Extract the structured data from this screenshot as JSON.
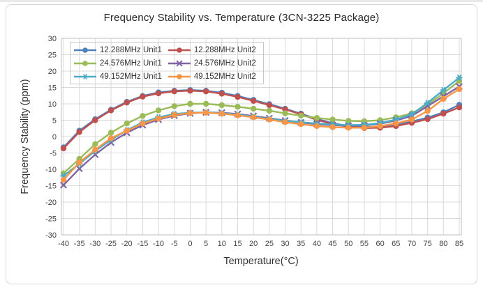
{
  "accent_colors": {
    "grid": "#d9d9d9",
    "plot_border": "#bfbfbf",
    "tick_text": "#404040",
    "title_text": "#262626"
  },
  "chart_data": {
    "type": "line",
    "title": "Frequency Stability vs. Temperature (3CN-3225 Package)",
    "xlabel": "Temperature(°C)",
    "ylabel": "Frequency Stability (ppm)",
    "x": [
      -40,
      -35,
      -30,
      -25,
      -20,
      -15,
      -10,
      -5,
      0,
      5,
      10,
      15,
      20,
      25,
      30,
      35,
      40,
      45,
      50,
      55,
      60,
      65,
      70,
      75,
      80,
      85
    ],
    "ylim": [
      -30,
      30
    ],
    "ytick_step": 5,
    "grid": true,
    "legend_position": "top-left-inside",
    "series": [
      {
        "name": "12.288MHz Unit1",
        "color": "#4F81BD",
        "marker": "circle",
        "values": [
          -3.3,
          1.8,
          5.3,
          8.2,
          10.6,
          12.4,
          13.5,
          14.0,
          14.2,
          14.0,
          13.4,
          12.4,
          11.2,
          9.9,
          8.5,
          7.0,
          5.4,
          4.1,
          3.2,
          2.9,
          3.0,
          3.6,
          4.6,
          5.8,
          7.4,
          9.7
        ]
      },
      {
        "name": "12.288MHz Unit2",
        "color": "#C0504D",
        "marker": "circle",
        "values": [
          -3.6,
          1.4,
          5.0,
          8.0,
          10.4,
          12.2,
          13.2,
          13.8,
          14.0,
          13.8,
          13.1,
          12.1,
          10.9,
          9.6,
          8.3,
          6.8,
          5.1,
          3.9,
          3.0,
          2.6,
          2.7,
          3.2,
          4.2,
          5.3,
          7.0,
          8.9
        ]
      },
      {
        "name": "24.576MHz Unit1",
        "color": "#9BBB59",
        "marker": "circle",
        "values": [
          -11.2,
          -6.8,
          -2.3,
          1.2,
          4.0,
          6.3,
          8.0,
          9.3,
          10.0,
          10.0,
          9.6,
          9.1,
          8.5,
          7.9,
          7.1,
          6.4,
          5.7,
          5.2,
          4.8,
          4.7,
          5.0,
          5.9,
          7.1,
          9.8,
          13.2,
          17.0
        ]
      },
      {
        "name": "24.576MHz Unit2",
        "color": "#8064A2",
        "marker": "x",
        "values": [
          -14.8,
          -9.8,
          -5.5,
          -1.8,
          1.2,
          3.5,
          5.2,
          6.4,
          7.1,
          7.4,
          7.3,
          6.9,
          6.3,
          5.6,
          4.9,
          4.3,
          3.8,
          3.5,
          3.3,
          3.4,
          3.9,
          4.9,
          6.3,
          9.3,
          12.3,
          15.3
        ]
      },
      {
        "name": "49.152MHz Unit1",
        "color": "#4BACC6",
        "marker": "asterisk",
        "values": [
          -12.0,
          -8.3,
          -4.4,
          -1.0,
          2.0,
          4.3,
          5.9,
          6.9,
          7.3,
          7.4,
          7.2,
          6.7,
          6.1,
          5.4,
          4.8,
          4.4,
          4.0,
          3.7,
          3.5,
          3.6,
          4.1,
          5.2,
          6.8,
          10.3,
          14.2,
          18.0
        ]
      },
      {
        "name": "49.152MHz Unit2",
        "color": "#F79646",
        "marker": "circle",
        "values": [
          -13.2,
          -7.9,
          -4.0,
          -0.5,
          1.8,
          4.0,
          5.5,
          6.6,
          7.2,
          7.3,
          7.0,
          6.5,
          5.9,
          5.2,
          4.4,
          3.8,
          3.2,
          2.9,
          2.7,
          2.7,
          3.2,
          4.0,
          5.2,
          7.8,
          11.5,
          14.5
        ]
      }
    ]
  }
}
